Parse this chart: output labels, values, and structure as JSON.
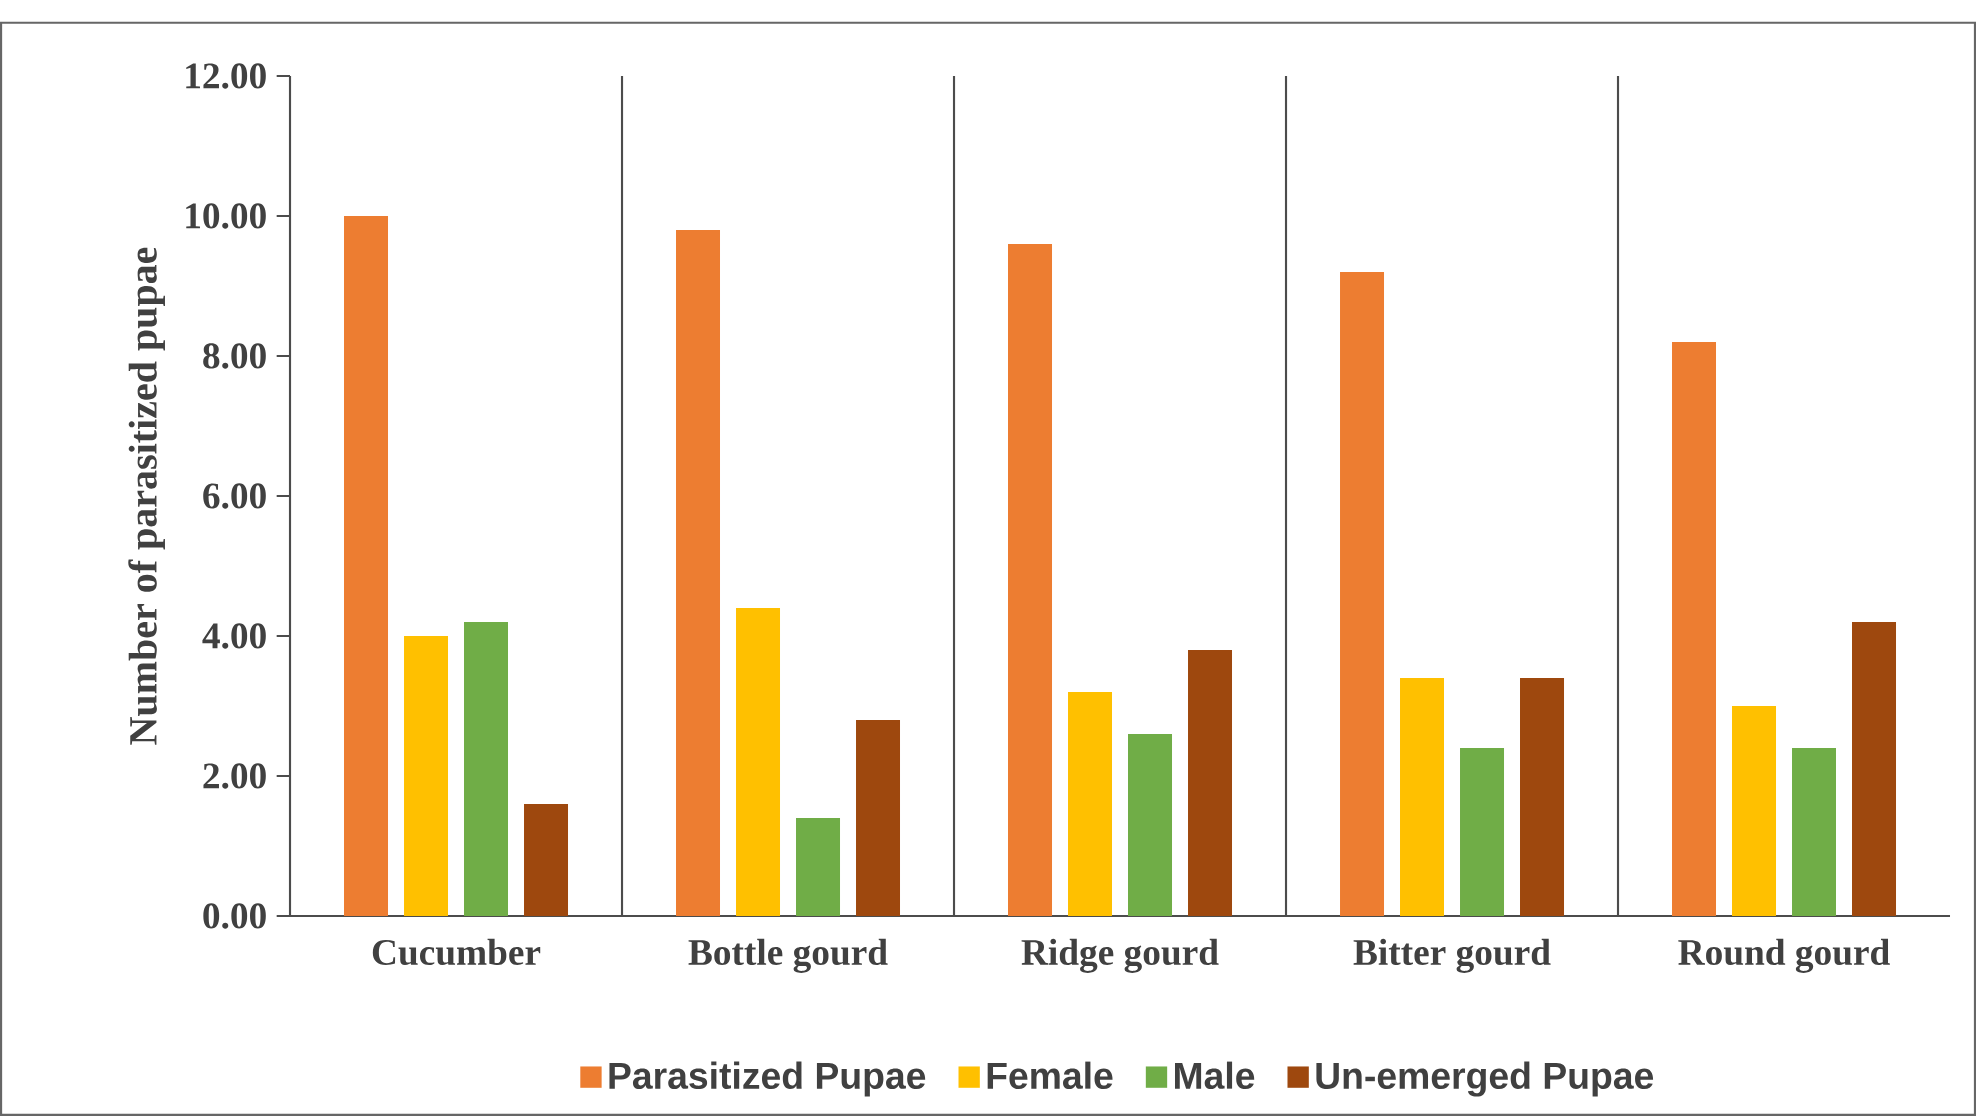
{
  "chart_data": {
    "type": "bar",
    "ylabel": "Number of parasitized pupae",
    "categories": [
      "Cucumber",
      "Bottle gourd",
      "Ridge gourd",
      "Bitter gourd",
      "Round gourd"
    ],
    "series": [
      {
        "name": "Parasitized Pupae",
        "color": "#ed7d31",
        "values": [
          10.0,
          9.8,
          9.6,
          9.2,
          8.2
        ]
      },
      {
        "name": "Female",
        "color": "#ffc000",
        "values": [
          4.0,
          4.4,
          3.2,
          3.4,
          3.0
        ]
      },
      {
        "name": "Male",
        "color": "#70ad47",
        "values": [
          4.2,
          1.4,
          2.6,
          2.4,
          2.4
        ]
      },
      {
        "name": "Un-emerged Pupae",
        "color": "#9e480e",
        "values": [
          1.6,
          2.8,
          3.8,
          3.4,
          4.2
        ]
      }
    ],
    "ylim": [
      0,
      12
    ],
    "yticks": [
      {
        "value": 0,
        "label": "0.00"
      },
      {
        "value": 2,
        "label": "2.00"
      },
      {
        "value": 4,
        "label": "4.00"
      },
      {
        "value": 6,
        "label": "6.00"
      },
      {
        "value": 8,
        "label": "8.00"
      },
      {
        "value": 10,
        "label": "10.00"
      },
      {
        "value": 12,
        "label": "12.00"
      }
    ],
    "grid": "x",
    "legend": "bottom"
  }
}
